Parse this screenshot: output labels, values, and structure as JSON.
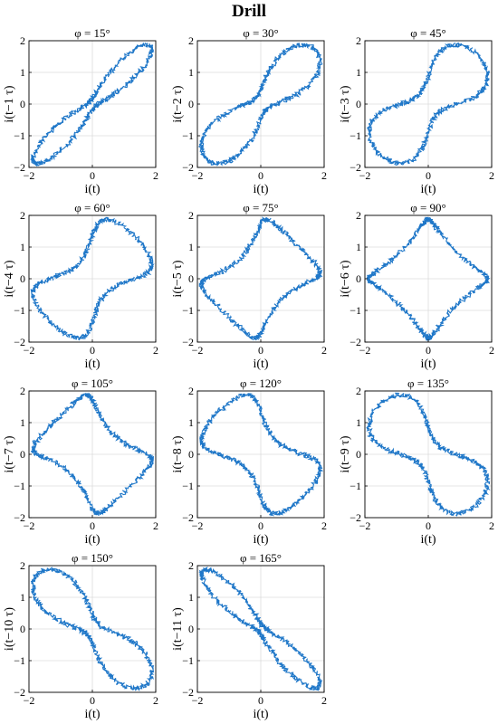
{
  "figure": {
    "title": "Drill"
  },
  "chart_data": {
    "type": "line",
    "subplot_count": 11,
    "grid": true,
    "line_color": "#1f77c8",
    "xlim": [
      -2,
      2
    ],
    "ylim": [
      -2,
      2
    ],
    "x_ticks": [
      -2,
      0,
      2
    ],
    "y_ticks": [
      -2,
      -1,
      0,
      1,
      2
    ],
    "xlabel": "i(t)",
    "panels": [
      {
        "phi_deg": 15,
        "title": "φ = 15°",
        "ylabel": "i(t−1 τ)"
      },
      {
        "phi_deg": 30,
        "title": "φ = 30°",
        "ylabel": "i(t−2 τ)"
      },
      {
        "phi_deg": 45,
        "title": "φ = 45°",
        "ylabel": "i(t−3 τ)"
      },
      {
        "phi_deg": 60,
        "title": "φ = 60°",
        "ylabel": "i(t−4 τ)"
      },
      {
        "phi_deg": 75,
        "title": "φ = 75°",
        "ylabel": "i(t−5 τ)"
      },
      {
        "phi_deg": 90,
        "title": "φ = 90°",
        "ylabel": "i(t−6 τ)"
      },
      {
        "phi_deg": 105,
        "title": "φ = 105°",
        "ylabel": "i(t−7 τ)"
      },
      {
        "phi_deg": 120,
        "title": "φ = 120°",
        "ylabel": "i(t−8 τ)"
      },
      {
        "phi_deg": 135,
        "title": "φ = 135°",
        "ylabel": "i(t−9 τ)"
      },
      {
        "phi_deg": 150,
        "title": "φ = 150°",
        "ylabel": "i(t−10 τ)"
      },
      {
        "phi_deg": 165,
        "title": "φ = 165°",
        "ylabel": "i(t−11 τ)"
      }
    ]
  }
}
